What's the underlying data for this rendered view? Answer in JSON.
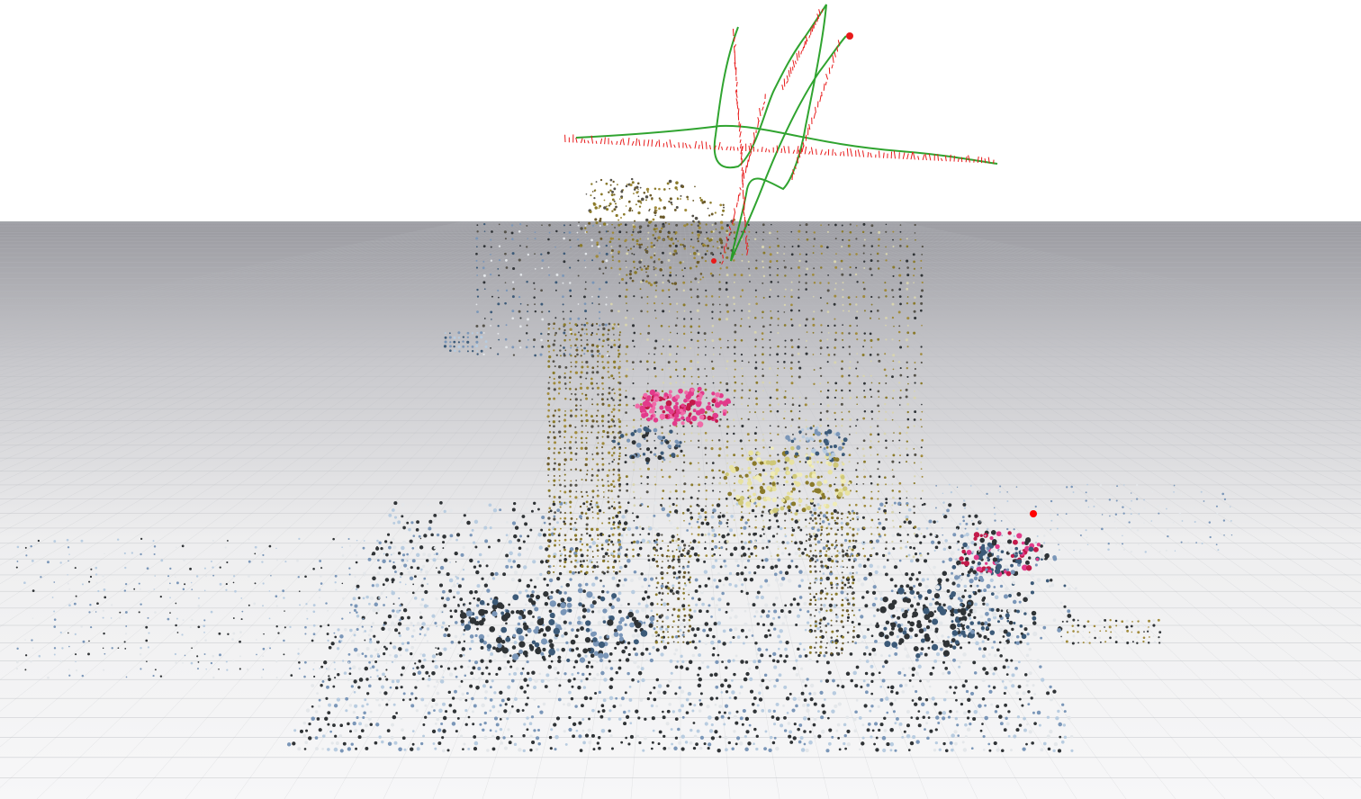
{
  "viewer": {
    "view_mode": "3d-perspective",
    "background_top": "#ffffff",
    "ground_colors": [
      "#9a9aa0",
      "#c9c9cd",
      "#eeeeef",
      "#f7f7f8"
    ],
    "grid_color": "#b9bcc0"
  },
  "scene": {
    "point_cloud": "colored-sparse-point-cloud",
    "point_palette": [
      "#2f3336",
      "#55524a",
      "#6b5a2a",
      "#8a7a2a",
      "#a08a3a",
      "#d8d4b0",
      "#e4e7ea",
      "#b8cce0",
      "#7a96b8",
      "#3c5a78",
      "#e23a8a",
      "#c21a4a"
    ],
    "camera_trajectory": {
      "estimated_path_color": "#1a9a1a",
      "reference_path_color": "#e81a1a",
      "current_camera_marker_color": "#ff0000"
    }
  }
}
